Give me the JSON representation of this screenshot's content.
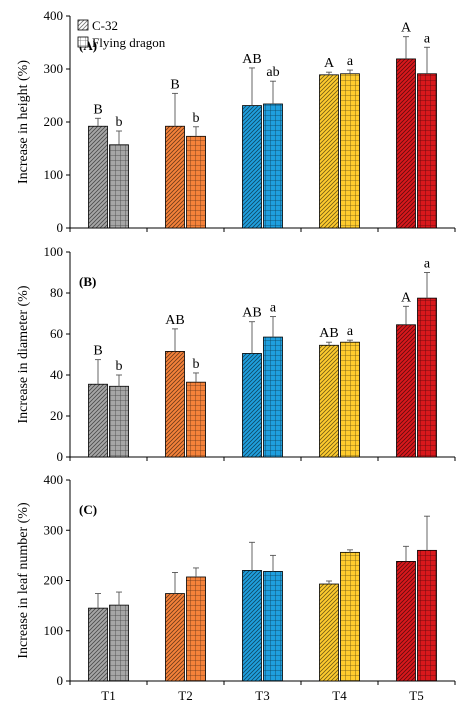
{
  "chart_data": [
    {
      "type": "bar",
      "panel_label": "(A)",
      "ylabel": "Increase in height (%)",
      "ylim": [
        0,
        400
      ],
      "yticks": [
        0,
        100,
        200,
        300,
        400
      ],
      "categories": [
        "T1",
        "T2",
        "T3",
        "T4",
        "T5"
      ],
      "series": [
        {
          "name": "C-32",
          "values": [
            192,
            192,
            231,
            289,
            319
          ],
          "errors": [
            15,
            62,
            71,
            5,
            42
          ],
          "letters": [
            "B",
            "B",
            "AB",
            "A",
            "A"
          ]
        },
        {
          "name": "Flying dragon",
          "values": [
            157,
            173,
            234,
            291,
            291
          ],
          "errors": [
            26,
            18,
            43,
            7,
            50
          ],
          "letters": [
            "b",
            "b",
            "ab",
            "a",
            "a"
          ]
        }
      ],
      "legend": "top-left"
    },
    {
      "type": "bar",
      "panel_label": "(B)",
      "ylabel": "Increase in diameter (%)",
      "ylim": [
        0,
        100
      ],
      "yticks": [
        0,
        20,
        40,
        60,
        80,
        100
      ],
      "categories": [
        "T1",
        "T2",
        "T3",
        "T4",
        "T5"
      ],
      "series": [
        {
          "name": "C-32",
          "values": [
            35.5,
            51.5,
            50.5,
            54.5,
            64.5
          ],
          "errors": [
            12,
            11,
            15.5,
            1.5,
            9
          ],
          "letters": [
            "B",
            "AB",
            "AB",
            "AB",
            "A"
          ]
        },
        {
          "name": "Flying dragon",
          "values": [
            34.5,
            36.5,
            58.5,
            56,
            77.5
          ],
          "errors": [
            5.5,
            4.5,
            10,
            1,
            12.5
          ],
          "letters": [
            "b",
            "b",
            "a",
            "a",
            "a"
          ]
        }
      ]
    },
    {
      "type": "bar",
      "panel_label": "(C)",
      "ylabel": "Increase in leaf number (%)",
      "ylim": [
        0,
        400
      ],
      "yticks": [
        0,
        100,
        200,
        300,
        400
      ],
      "categories": [
        "T1",
        "T2",
        "T3",
        "T4",
        "T5"
      ],
      "series": [
        {
          "name": "C-32",
          "values": [
            145,
            174,
            220,
            193,
            238
          ],
          "errors": [
            29,
            42,
            56,
            6,
            30
          ],
          "letters": [
            "",
            "",
            "",
            "",
            ""
          ]
        },
        {
          "name": "Flying dragon",
          "values": [
            151,
            207,
            218,
            256,
            260
          ],
          "errors": [
            26,
            18,
            32,
            5,
            68
          ],
          "letters": [
            "",
            "",
            "",
            "",
            ""
          ]
        }
      ]
    }
  ],
  "colors": {
    "categories": [
      "#a6a6a6",
      "#f5823a",
      "#1f9fde",
      "#ffcc2e",
      "#d9181c"
    ],
    "outline": "#000000"
  }
}
